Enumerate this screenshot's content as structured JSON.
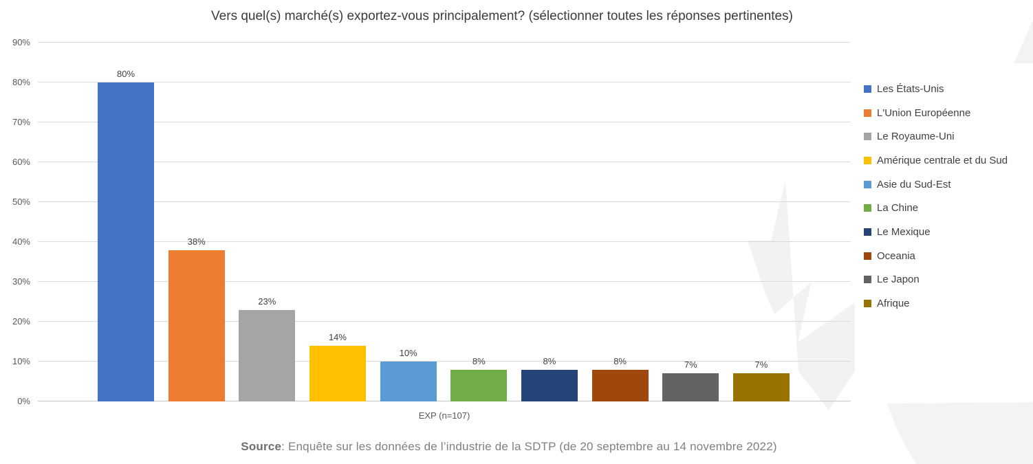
{
  "title": "Vers quel(s) marché(s) exportez-vous principalement? (sélectionner toutes les réponses pertinentes)",
  "chart_data": {
    "type": "bar",
    "title": "Vers quel(s) marché(s) exportez-vous principalement? (sélectionner toutes les réponses pertinentes)",
    "categories": [
      "Les États-Unis",
      "L'Union Européenne",
      "Le Royaume-Uni",
      "Amérique centrale et du Sud",
      "Asie du Sud-Est",
      "La Chine",
      "Le Mexique",
      "Oceania",
      "Le Japon",
      "Afrique"
    ],
    "values": [
      80,
      38,
      23,
      14,
      10,
      8,
      8,
      8,
      7,
      7
    ],
    "value_labels": [
      "80%",
      "38%",
      "23%",
      "14%",
      "10%",
      "8%",
      "8%",
      "8%",
      "7%",
      "7%"
    ],
    "colors": [
      "#4472C4",
      "#ED7D31",
      "#A5A5A5",
      "#FFC000",
      "#5B9BD5",
      "#70AD47",
      "#264478",
      "#9E480E",
      "#636363",
      "#997300"
    ],
    "xlabel": "EXP (n=107)",
    "ylabel": "",
    "ylim": [
      0,
      90
    ],
    "yticks": [
      "0%",
      "10%",
      "20%",
      "30%",
      "40%",
      "50%",
      "60%",
      "70%",
      "80%",
      "90%"
    ],
    "grid": true,
    "legend_position": "right"
  },
  "legend": {
    "items": [
      {
        "label": "Les États-Unis",
        "color": "#4472C4"
      },
      {
        "label": "L'Union Européenne",
        "color": "#ED7D31"
      },
      {
        "label": "Le Royaume-Uni",
        "color": "#A5A5A5"
      },
      {
        "label": "Amérique centrale et du Sud",
        "color": "#FFC000"
      },
      {
        "label": "Asie du Sud-Est",
        "color": "#5B9BD5"
      },
      {
        "label": "La Chine",
        "color": "#70AD47"
      },
      {
        "label": "Le Mexique",
        "color": "#264478"
      },
      {
        "label": "Oceania",
        "color": "#9E480E"
      },
      {
        "label": "Le Japon",
        "color": "#636363"
      },
      {
        "label": "Afrique",
        "color": "#997300"
      }
    ]
  },
  "x_axis": {
    "label": "EXP (n=107)"
  },
  "source": {
    "prefix": "Source",
    "text": ": Enquête sur les données de l’industrie de la SDTP (de 20 septembre au 14 novembre 2022)"
  },
  "style_colors": {
    "gridline": "#D9D9D9",
    "axis_text": "#595959",
    "label_text": "#404040",
    "watermark": "#F2F2F2"
  }
}
